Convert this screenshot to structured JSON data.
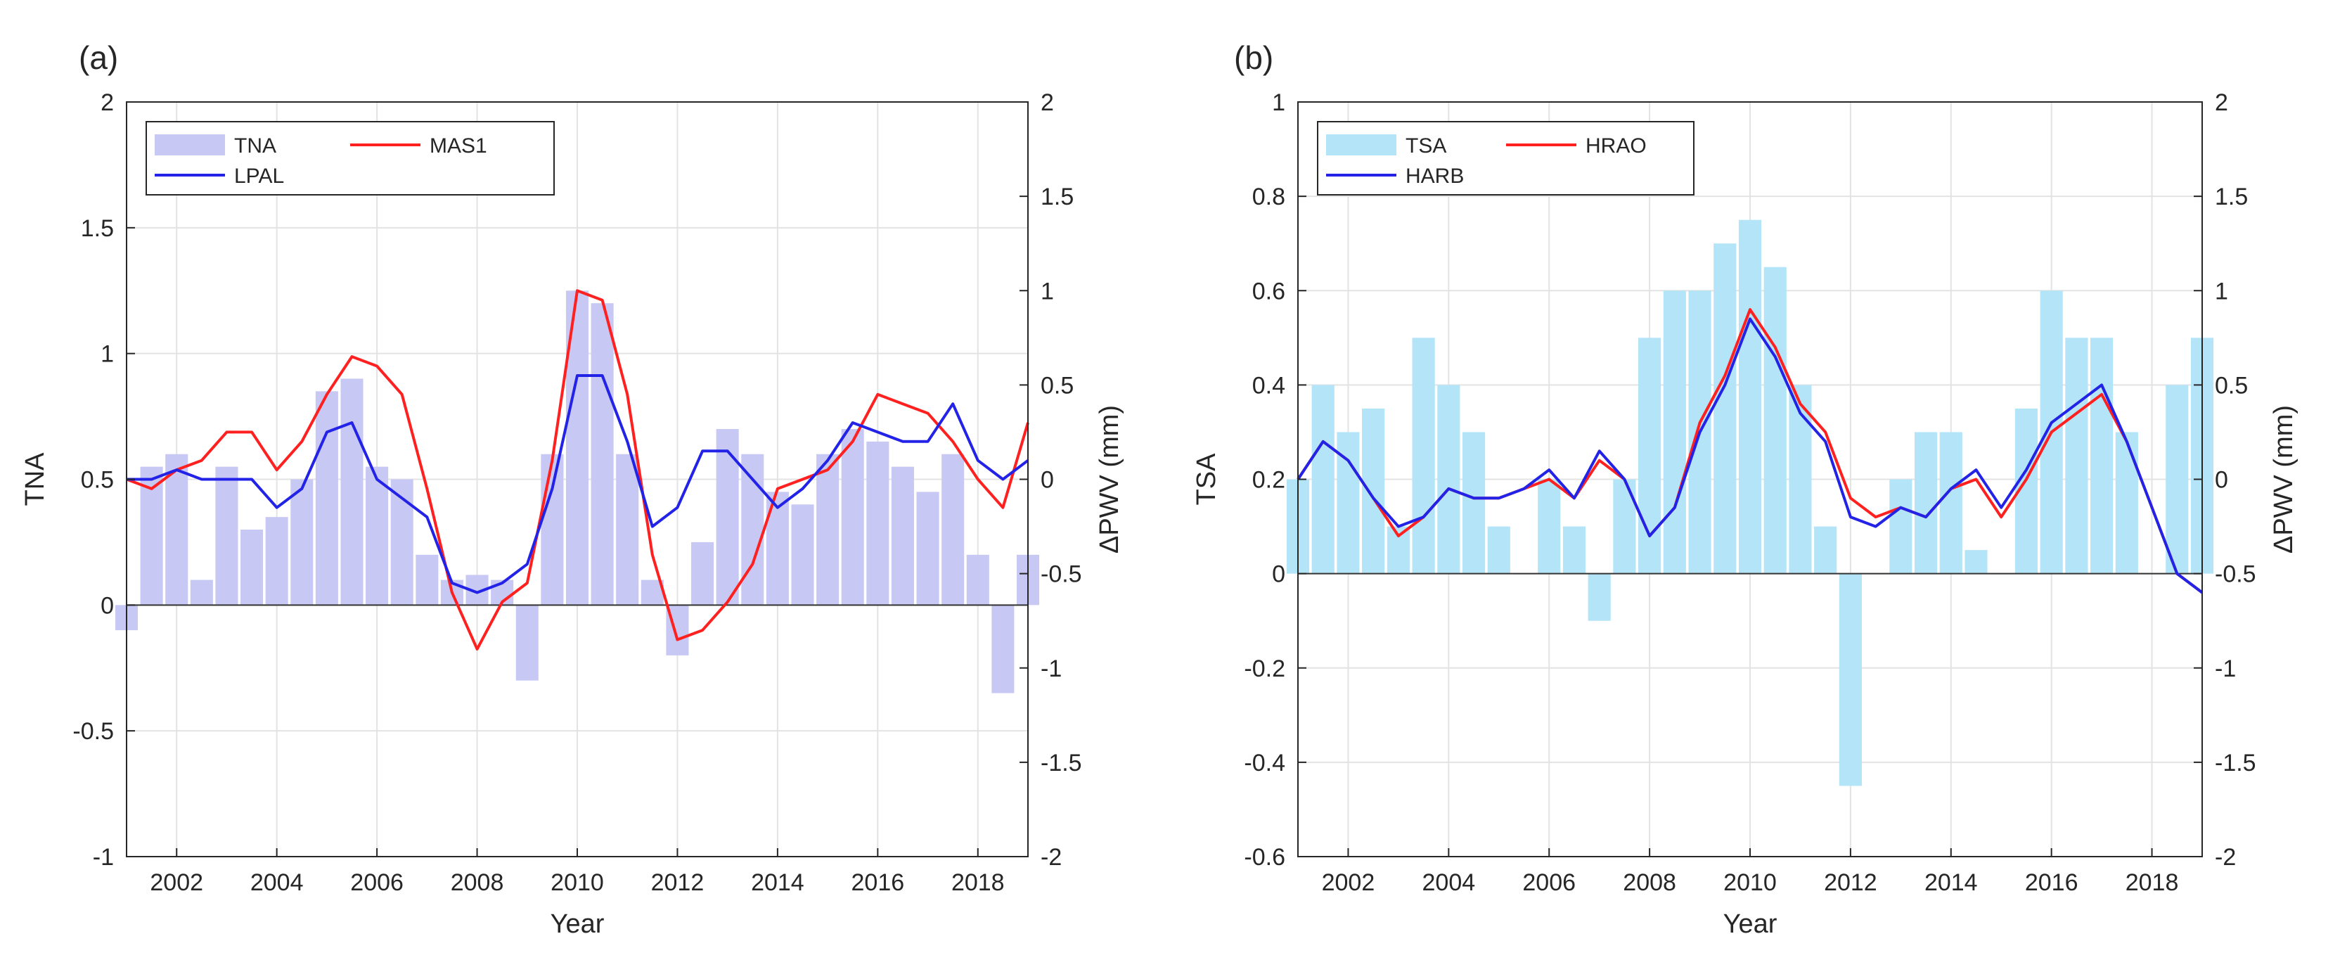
{
  "chart_data": [
    {
      "panel_label": "(a)",
      "type": "bar+line",
      "xlabel": "Year",
      "ylabel_left": "TNA",
      "ylabel_right": "ΔPWV (mm)",
      "xlim": [
        2001,
        2019
      ],
      "ylim_left": [
        -1,
        2
      ],
      "ylim_right": [
        -2,
        2
      ],
      "x_ticks": [
        "2002",
        "2004",
        "2006",
        "2008",
        "2010",
        "2012",
        "2014",
        "2016",
        "2018"
      ],
      "y_ticks_left": [
        "-1",
        "-0.5",
        "0",
        "0.5",
        "1",
        "1.5",
        "2"
      ],
      "y_ticks_right": [
        "-2",
        "-1.5",
        "-1",
        "-0.5",
        "0",
        "0.5",
        "1",
        "1.5",
        "2"
      ],
      "grid": true,
      "legend_position": "top-left",
      "bar_series": {
        "name": "TNA",
        "color": "#c8c8f4",
        "x": [
          2001.0,
          2001.5,
          2002.0,
          2002.5,
          2003.0,
          2003.5,
          2004.0,
          2004.5,
          2005.0,
          2005.5,
          2006.0,
          2006.5,
          2007.0,
          2007.5,
          2008.0,
          2008.5,
          2009.0,
          2009.5,
          2010.0,
          2010.5,
          2011.0,
          2011.5,
          2012.0,
          2012.5,
          2013.0,
          2013.5,
          2014.0,
          2014.5,
          2015.0,
          2015.5,
          2016.0,
          2016.5,
          2017.0,
          2017.5,
          2018.0,
          2018.5,
          2019.0
        ],
        "values": [
          -0.1,
          0.55,
          0.6,
          0.1,
          0.55,
          0.3,
          0.35,
          0.5,
          0.85,
          0.9,
          0.55,
          0.5,
          0.2,
          0.1,
          0.12,
          0.1,
          -0.3,
          0.6,
          1.25,
          1.2,
          0.6,
          0.1,
          -0.2,
          0.25,
          0.7,
          0.6,
          0.45,
          0.4,
          0.6,
          0.7,
          0.65,
          0.55,
          0.45,
          0.6,
          0.2,
          -0.35,
          0.2
        ]
      },
      "line_series": [
        {
          "name": "MAS1",
          "color": "#ff2020",
          "axis": "right",
          "x": [
            2001.0,
            2001.5,
            2002.0,
            2002.5,
            2003.0,
            2003.5,
            2004.0,
            2004.5,
            2005.0,
            2005.5,
            2006.0,
            2006.5,
            2007.0,
            2007.5,
            2008.0,
            2008.5,
            2009.0,
            2009.5,
            2010.0,
            2010.5,
            2011.0,
            2011.5,
            2012.0,
            2012.5,
            2013.0,
            2013.5,
            2014.0,
            2014.5,
            2015.0,
            2015.5,
            2016.0,
            2016.5,
            2017.0,
            2017.5,
            2018.0,
            2018.5,
            2019.0
          ],
          "values": [
            0.0,
            -0.05,
            0.05,
            0.1,
            0.25,
            0.25,
            0.05,
            0.2,
            0.45,
            0.65,
            0.6,
            0.45,
            -0.05,
            -0.6,
            -0.9,
            -0.65,
            -0.55,
            0.1,
            1.0,
            0.95,
            0.45,
            -0.4,
            -0.85,
            -0.8,
            -0.65,
            -0.45,
            -0.05,
            0.0,
            0.05,
            0.2,
            0.45,
            0.4,
            0.35,
            0.2,
            0.0,
            -0.15,
            0.3
          ]
        },
        {
          "name": "LPAL",
          "color": "#2323e8",
          "axis": "right",
          "x": [
            2001.0,
            2001.5,
            2002.0,
            2002.5,
            2003.0,
            2003.5,
            2004.0,
            2004.5,
            2005.0,
            2005.5,
            2006.0,
            2006.5,
            2007.0,
            2007.5,
            2008.0,
            2008.5,
            2009.0,
            2009.5,
            2010.0,
            2010.5,
            2011.0,
            2011.5,
            2012.0,
            2012.5,
            2013.0,
            2013.5,
            2014.0,
            2014.5,
            2015.0,
            2015.5,
            2016.0,
            2016.5,
            2017.0,
            2017.5,
            2018.0,
            2018.5,
            2019.0
          ],
          "values": [
            0.0,
            0.0,
            0.05,
            0.0,
            0.0,
            0.0,
            -0.15,
            -0.05,
            0.25,
            0.3,
            0.0,
            -0.1,
            -0.2,
            -0.55,
            -0.6,
            -0.55,
            -0.45,
            -0.05,
            0.55,
            0.55,
            0.2,
            -0.25,
            -0.15,
            0.15,
            0.15,
            0.0,
            -0.15,
            -0.05,
            0.1,
            0.3,
            0.25,
            0.2,
            0.2,
            0.4,
            0.1,
            0.0,
            0.1
          ]
        }
      ]
    },
    {
      "panel_label": "(b)",
      "type": "bar+line",
      "xlabel": "Year",
      "ylabel_left": "TSA",
      "ylabel_right": "ΔPWV (mm)",
      "xlim": [
        2001,
        2019
      ],
      "ylim_left": [
        -0.6,
        1
      ],
      "ylim_right": [
        -2,
        2
      ],
      "x_ticks": [
        "2002",
        "2004",
        "2006",
        "2008",
        "2010",
        "2012",
        "2014",
        "2016",
        "2018"
      ],
      "y_ticks_left": [
        "-0.6",
        "-0.4",
        "-0.2",
        "0",
        "0.2",
        "0.4",
        "0.6",
        "0.8",
        "1"
      ],
      "y_ticks_right": [
        "-2",
        "-1.5",
        "-1",
        "-0.5",
        "0",
        "0.5",
        "1",
        "1.5",
        "2"
      ],
      "grid": true,
      "legend_position": "top-left",
      "bar_series": {
        "name": "TSA",
        "color": "#b3e4f7",
        "x": [
          2001.0,
          2001.5,
          2002.0,
          2002.5,
          2003.0,
          2003.5,
          2004.0,
          2004.5,
          2005.0,
          2005.5,
          2006.0,
          2006.5,
          2007.0,
          2007.5,
          2008.0,
          2008.5,
          2009.0,
          2009.5,
          2010.0,
          2010.5,
          2011.0,
          2011.5,
          2012.0,
          2012.5,
          2013.0,
          2013.5,
          2014.0,
          2014.5,
          2015.0,
          2015.5,
          2016.0,
          2016.5,
          2017.0,
          2017.5,
          2018.0,
          2018.5,
          2019.0
        ],
        "values": [
          0.2,
          0.4,
          0.3,
          0.35,
          0.1,
          0.5,
          0.4,
          0.3,
          0.1,
          0.0,
          0.2,
          0.1,
          -0.1,
          0.2,
          0.5,
          0.6,
          0.6,
          0.7,
          0.75,
          0.65,
          0.4,
          0.1,
          -0.45,
          0.0,
          0.2,
          0.3,
          0.3,
          0.05,
          0.0,
          0.35,
          0.6,
          0.5,
          0.5,
          0.3,
          0.0,
          0.4,
          0.5
        ]
      },
      "line_series": [
        {
          "name": "HRAO",
          "color": "#ff2020",
          "axis": "right",
          "x": [
            2001.0,
            2001.5,
            2002.0,
            2002.5,
            2003.0,
            2003.5,
            2004.0,
            2004.5,
            2005.0,
            2005.5,
            2006.0,
            2006.5,
            2007.0,
            2007.5,
            2008.0,
            2008.5,
            2009.0,
            2009.5,
            2010.0,
            2010.5,
            2011.0,
            2011.5,
            2012.0,
            2012.5,
            2013.0,
            2013.5,
            2014.0,
            2014.5,
            2015.0,
            2015.5,
            2016.0,
            2016.5,
            2017.0,
            2017.5,
            2018.0,
            2018.5,
            2019.0
          ],
          "values": [
            0.0,
            0.2,
            0.1,
            -0.1,
            -0.3,
            -0.2,
            -0.05,
            -0.1,
            -0.1,
            -0.05,
            0.0,
            -0.1,
            0.1,
            0.0,
            -0.3,
            -0.15,
            0.3,
            0.55,
            0.9,
            0.7,
            0.4,
            0.25,
            -0.1,
            -0.2,
            -0.15,
            -0.2,
            -0.05,
            0.0,
            -0.2,
            0.0,
            0.25,
            0.35,
            0.45,
            0.2,
            -0.15,
            -0.5,
            -0.6
          ]
        },
        {
          "name": "HARB",
          "color": "#2323e8",
          "axis": "right",
          "x": [
            2001.0,
            2001.5,
            2002.0,
            2002.5,
            2003.0,
            2003.5,
            2004.0,
            2004.5,
            2005.0,
            2005.5,
            2006.0,
            2006.5,
            2007.0,
            2007.5,
            2008.0,
            2008.5,
            2009.0,
            2009.5,
            2010.0,
            2010.5,
            2011.0,
            2011.5,
            2012.0,
            2012.5,
            2013.0,
            2013.5,
            2014.0,
            2014.5,
            2015.0,
            2015.5,
            2016.0,
            2016.5,
            2017.0,
            2017.5,
            2018.0,
            2018.5,
            2019.0
          ],
          "values": [
            0.0,
            0.2,
            0.1,
            -0.1,
            -0.25,
            -0.2,
            -0.05,
            -0.1,
            -0.1,
            -0.05,
            0.05,
            -0.1,
            0.15,
            0.0,
            -0.3,
            -0.15,
            0.25,
            0.5,
            0.85,
            0.65,
            0.35,
            0.2,
            -0.2,
            -0.25,
            -0.15,
            -0.2,
            -0.05,
            0.05,
            -0.15,
            0.05,
            0.3,
            0.4,
            0.5,
            0.2,
            -0.15,
            -0.5,
            -0.6
          ]
        }
      ]
    }
  ]
}
